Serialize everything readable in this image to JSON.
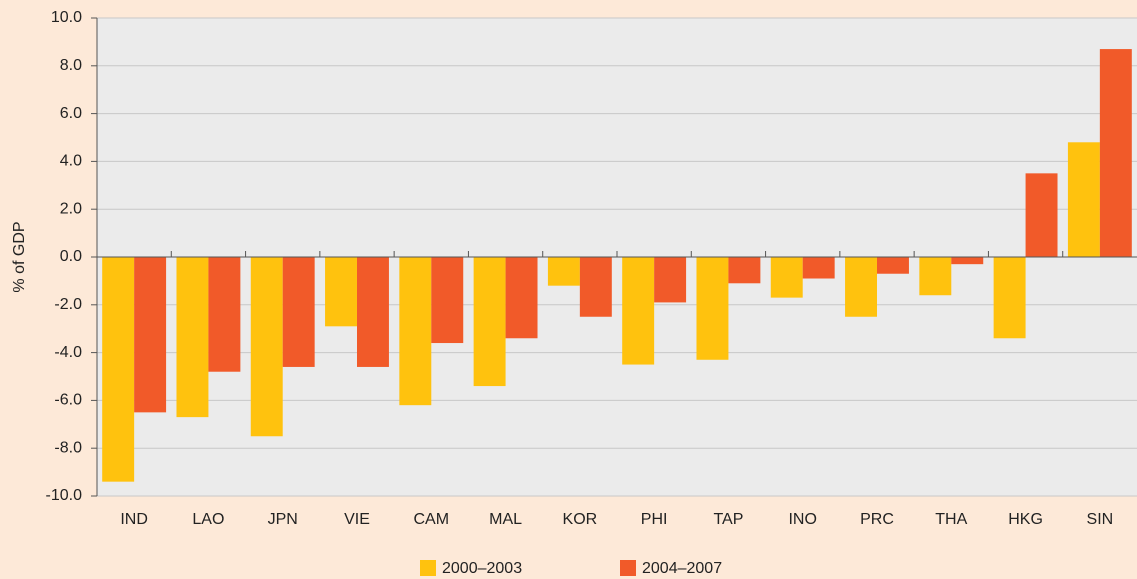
{
  "chart_data": {
    "type": "bar",
    "y_label": "% of GDP",
    "categories": [
      "IND",
      "LAO",
      "JPN",
      "VIE",
      "CAM",
      "MAL",
      "KOR",
      "PHI",
      "TAP",
      "INO",
      "PRC",
      "THA",
      "HKG",
      "SIN"
    ],
    "series": [
      {
        "name": "2000–2003",
        "color": "#ffc20e",
        "values": [
          -9.4,
          -6.7,
          -7.5,
          -2.9,
          -6.2,
          -5.4,
          -1.2,
          -4.5,
          -4.3,
          -1.7,
          -2.5,
          -1.6,
          -3.4,
          4.8
        ]
      },
      {
        "name": "2004–2007",
        "color": "#f15a29",
        "values": [
          -6.5,
          -4.8,
          -4.6,
          -4.6,
          -3.6,
          -3.4,
          -2.5,
          -1.9,
          -1.1,
          -0.9,
          -0.7,
          -0.3,
          3.5,
          8.7
        ]
      }
    ],
    "ylim": [
      -10,
      10
    ],
    "yticks": [
      {
        "value": -10,
        "label": "-10.0"
      },
      {
        "value": -8,
        "label": "-8.0"
      },
      {
        "value": -6,
        "label": "-6.0"
      },
      {
        "value": -4,
        "label": "-4.0"
      },
      {
        "value": -2,
        "label": "-2.0"
      },
      {
        "value": 0,
        "label": "0.0"
      },
      {
        "value": 2,
        "label": "2.0"
      },
      {
        "value": 4,
        "label": "4.0"
      },
      {
        "value": 6,
        "label": "6.0"
      },
      {
        "value": 8,
        "label": "8.0"
      },
      {
        "value": 10,
        "label": "10.0"
      }
    ],
    "grid": true,
    "legend": "bottom"
  }
}
